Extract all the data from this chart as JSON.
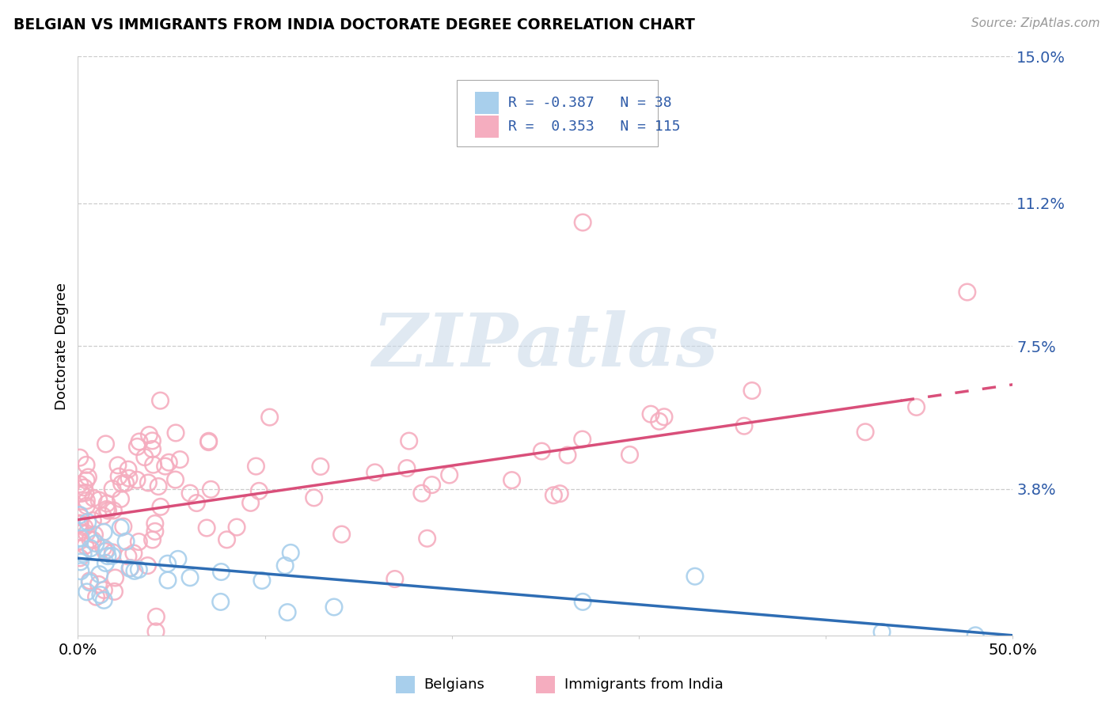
{
  "title": "BELGIAN VS IMMIGRANTS FROM INDIA DOCTORATE DEGREE CORRELATION CHART",
  "source": "Source: ZipAtlas.com",
  "ylabel": "Doctorate Degree",
  "xlim": [
    0.0,
    0.5
  ],
  "ylim": [
    0.0,
    0.15
  ],
  "ytick_vals": [
    0.038,
    0.075,
    0.112,
    0.15
  ],
  "ytick_labels": [
    "3.8%",
    "7.5%",
    "11.2%",
    "15.0%"
  ],
  "xtick_vals": [
    0.0,
    0.1,
    0.2,
    0.3,
    0.4,
    0.5
  ],
  "xtick_labels": [
    "0.0%",
    "",
    "",
    "",
    "",
    "50.0%"
  ],
  "belgian_color": "#A8CFEC",
  "india_color": "#F5ADBF",
  "belgian_line_color": "#2E6DB4",
  "india_line_color": "#D94F7A",
  "watermark": "ZIPatlas",
  "legend_text_color": "#2E5BA8",
  "R_belgian": -0.387,
  "N_belgian": 38,
  "R_india": 0.353,
  "N_india": 115
}
